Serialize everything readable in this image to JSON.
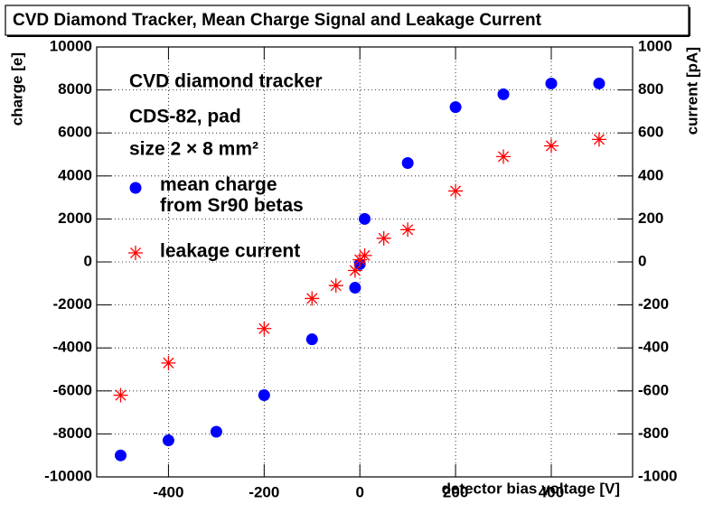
{
  "chart_data": {
    "type": "scatter",
    "title": "CVD Diamond Tracker, Mean Charge Signal and Leakage Current",
    "xlabel": "detector bias voltage [V]",
    "ylabel": "charge [e]",
    "y2label": "current [pA]",
    "annotations": [
      "CVD diamond tracker",
      "CDS-82, pad",
      "size 2 × 8 mm²"
    ],
    "xlim": [
      -550,
      570
    ],
    "xticks": [
      -400,
      -200,
      0,
      200,
      400
    ],
    "ylim": [
      -10000,
      10000
    ],
    "yticks": [
      -10000,
      -8000,
      -6000,
      -4000,
      -2000,
      0,
      2000,
      4000,
      6000,
      8000,
      10000
    ],
    "y2lim": [
      -1000,
      1000
    ],
    "y2ticks": [
      -1000,
      -800,
      -600,
      -400,
      -200,
      0,
      200,
      400,
      600,
      800,
      1000
    ],
    "grid": true,
    "series": [
      {
        "name": "mean charge\nfrom Sr90 betas",
        "color": "#0000ff",
        "marker": "circle",
        "x": [
          -500,
          -400,
          -300,
          -200,
          -100,
          -10,
          0,
          10,
          100,
          200,
          300,
          400,
          500
        ],
        "values": [
          -9000,
          -8300,
          -7900,
          -6200,
          -3600,
          -1200,
          -100,
          2000,
          4600,
          7200,
          7800,
          8300,
          8300
        ]
      },
      {
        "name": "leakage current",
        "color": "#ff0000",
        "marker": "star",
        "axis": "y2",
        "x": [
          -500,
          -400,
          -200,
          -100,
          -50,
          -10,
          0,
          10,
          50,
          100,
          200,
          300,
          400,
          500
        ],
        "values": [
          -620,
          -470,
          -310,
          -170,
          -110,
          -40,
          10,
          30,
          110,
          150,
          330,
          490,
          540,
          570
        ]
      }
    ]
  }
}
